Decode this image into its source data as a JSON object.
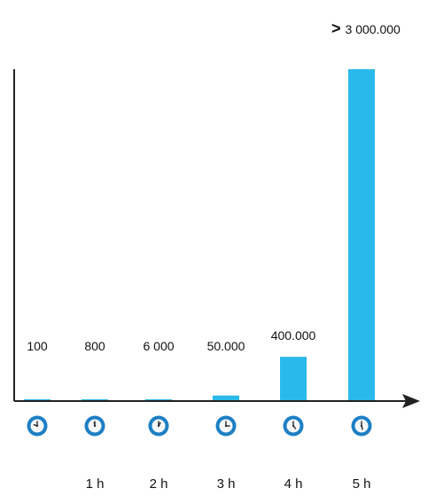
{
  "chart_data": {
    "type": "bar",
    "categories": [
      "",
      "1 h",
      "2 h",
      "3 h",
      "4 h",
      "5 h"
    ],
    "values": [
      100,
      800,
      6000,
      50000,
      400000,
      3000000
    ],
    "value_labels": [
      "100",
      "800",
      "6 000",
      "50.000",
      "400.000",
      ""
    ],
    "top_annotation": {
      "symbol": ">",
      "text": "3 000.000"
    },
    "xlabel": "",
    "ylabel": "",
    "ylim": [
      0,
      3000000
    ],
    "grid": false,
    "bar_color": "#29b9ea",
    "marker_icon": "clock-icon",
    "clock_colors": {
      "ring": "#1d7fc4",
      "face": "#f5f8fb",
      "hand": "#333333"
    }
  }
}
